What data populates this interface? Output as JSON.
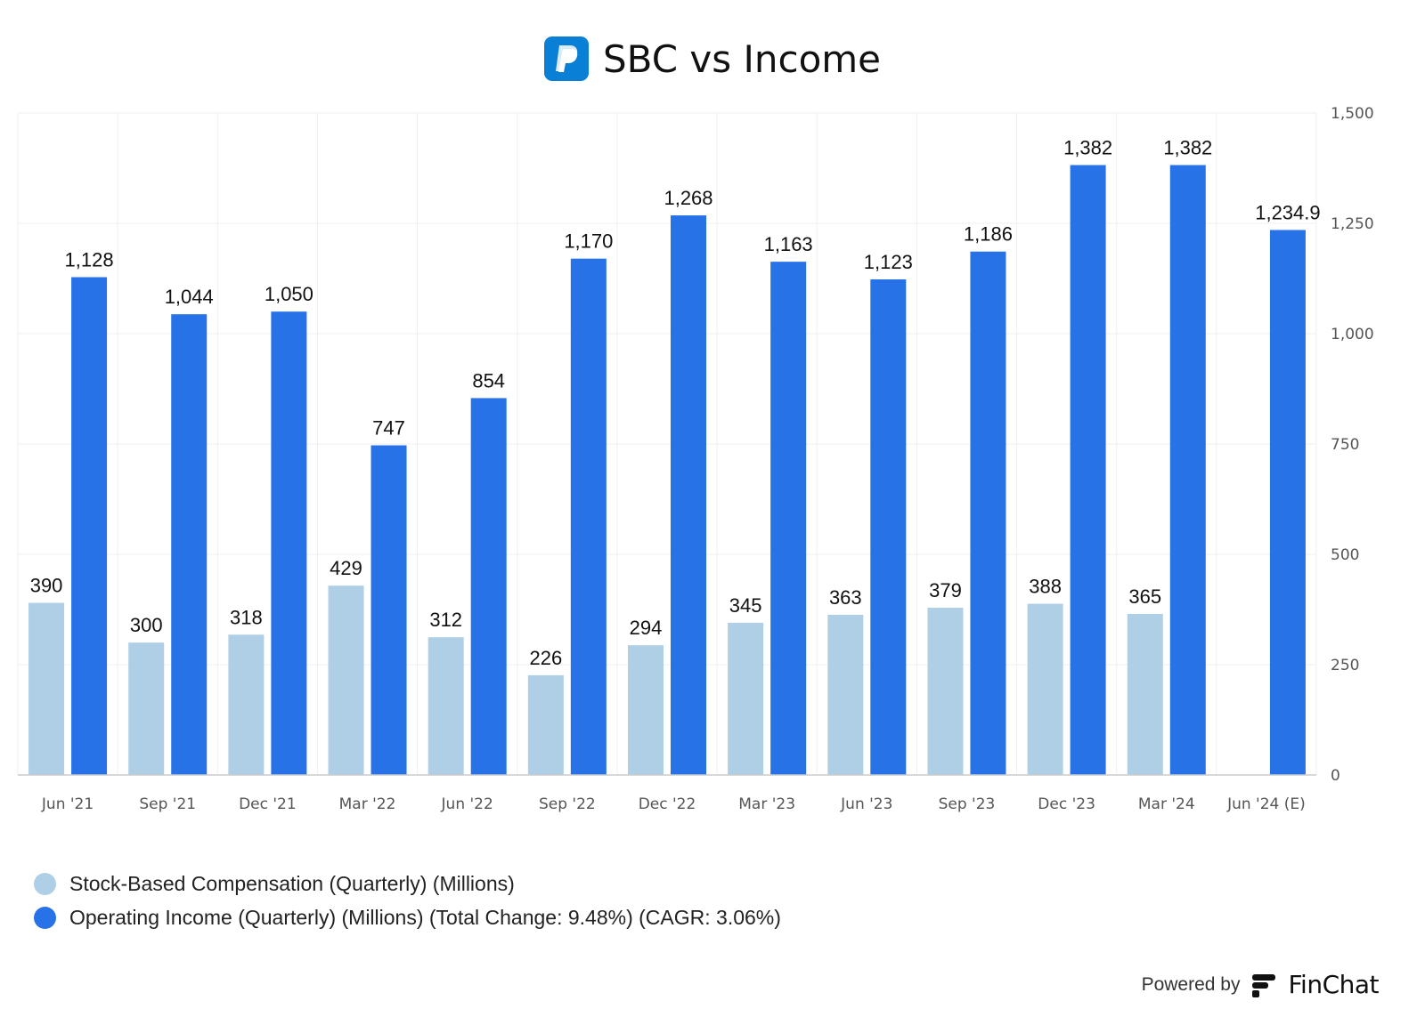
{
  "header": {
    "title": "SBC vs Income",
    "logo": "paypal-logo"
  },
  "chart_data": {
    "type": "bar",
    "title": "SBC vs Income",
    "categories": [
      "Jun '21",
      "Sep '21",
      "Dec '21",
      "Mar '22",
      "Jun '22",
      "Sep '22",
      "Dec '22",
      "Mar '23",
      "Jun '23",
      "Sep '23",
      "Dec '23",
      "Mar '24",
      "Jun '24 (E)"
    ],
    "series": [
      {
        "name": "Stock-Based Compensation (Quarterly) (Millions)",
        "color": "#aecfe5",
        "values": [
          390,
          300,
          318,
          429,
          312,
          226,
          294,
          345,
          363,
          379,
          388,
          365,
          null
        ],
        "labels": [
          "390",
          "300",
          "318",
          "429",
          "312",
          "226",
          "294",
          "345",
          "363",
          "379",
          "388",
          "365",
          ""
        ]
      },
      {
        "name": "Operating Income (Quarterly) (Millions) (Total Change: 9.48%) (CAGR: 3.06%)",
        "color": "#2872e8",
        "values": [
          1128,
          1044,
          1050,
          747,
          854,
          1170,
          1268,
          1163,
          1123,
          1186,
          1382,
          1382,
          1234.9
        ],
        "labels": [
          "1,128",
          "1,044",
          "1,050",
          "747",
          "854",
          "1,170",
          "1,268",
          "1,163",
          "1,123",
          "1,186",
          "1,382",
          "1,382",
          "1,234.9"
        ]
      }
    ],
    "ylim": [
      0,
      1500
    ],
    "yticks": [
      0,
      250,
      500,
      750,
      1000,
      1250,
      1500
    ],
    "ytick_labels": [
      "0",
      "250",
      "500",
      "750",
      "1,000",
      "1,250",
      "1,500"
    ],
    "yaxis_position": "right",
    "grid": true,
    "legend_position": "bottom-left"
  },
  "footer": {
    "powered_by": "Powered by",
    "brand": "FinChat"
  }
}
